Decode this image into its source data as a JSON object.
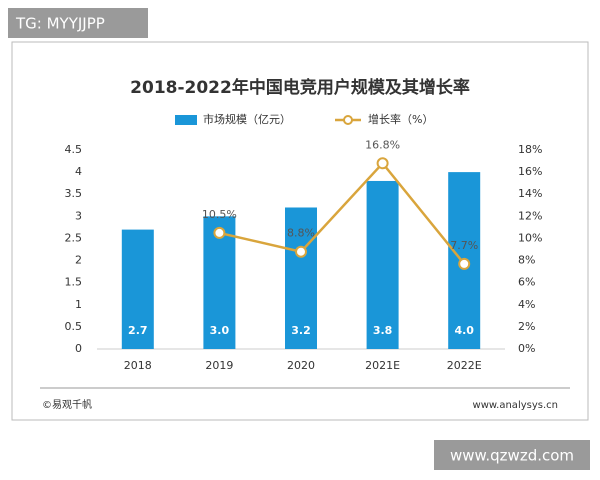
{
  "overlay": {
    "top_label": "TG: MYYJJPP",
    "bottom_label": "www.qzwzd.com"
  },
  "footer": {
    "left": "©易观千帆",
    "right": "www.analysys.cn"
  },
  "chart_data": {
    "type": "bar-line",
    "title": "2018-2022年中国电竞用户规模及其增长率",
    "categories": [
      "2018",
      "2019",
      "2020",
      "2021E",
      "2022E"
    ],
    "series": [
      {
        "name": "市场规模（亿元）",
        "type": "bar",
        "color": "#1a96d8",
        "values": [
          2.7,
          3.0,
          3.2,
          3.8,
          4.0
        ],
        "value_labels": [
          "2.7",
          "3.0",
          "3.2",
          "3.8",
          "4.0"
        ]
      },
      {
        "name": "增长率（%）",
        "type": "line",
        "axis": "y2",
        "color": "#d9a53c",
        "values": [
          null,
          10.5,
          8.8,
          16.8,
          7.7
        ],
        "value_labels": [
          null,
          "10.5%",
          "8.8%",
          "16.8%",
          "7.7%"
        ]
      }
    ],
    "ylim": [
      0,
      4.5
    ],
    "yticks": [
      0,
      0.5,
      1,
      1.5,
      2,
      2.5,
      3,
      3.5,
      4,
      4.5
    ],
    "y2lim": [
      0,
      18
    ],
    "y2ticks": [
      {
        "value": 0,
        "label": "0%"
      },
      {
        "value": 2,
        "label": "2%"
      },
      {
        "value": 4,
        "label": "4%"
      },
      {
        "value": 6,
        "label": "6%"
      },
      {
        "value": 8,
        "label": "8%"
      },
      {
        "value": 10,
        "label": "10%"
      },
      {
        "value": 12,
        "label": "12%"
      },
      {
        "value": 14,
        "label": "14%"
      },
      {
        "value": 16,
        "label": "16%"
      },
      {
        "value": 18,
        "label": "18%"
      }
    ],
    "grid": false,
    "legend": "top"
  }
}
